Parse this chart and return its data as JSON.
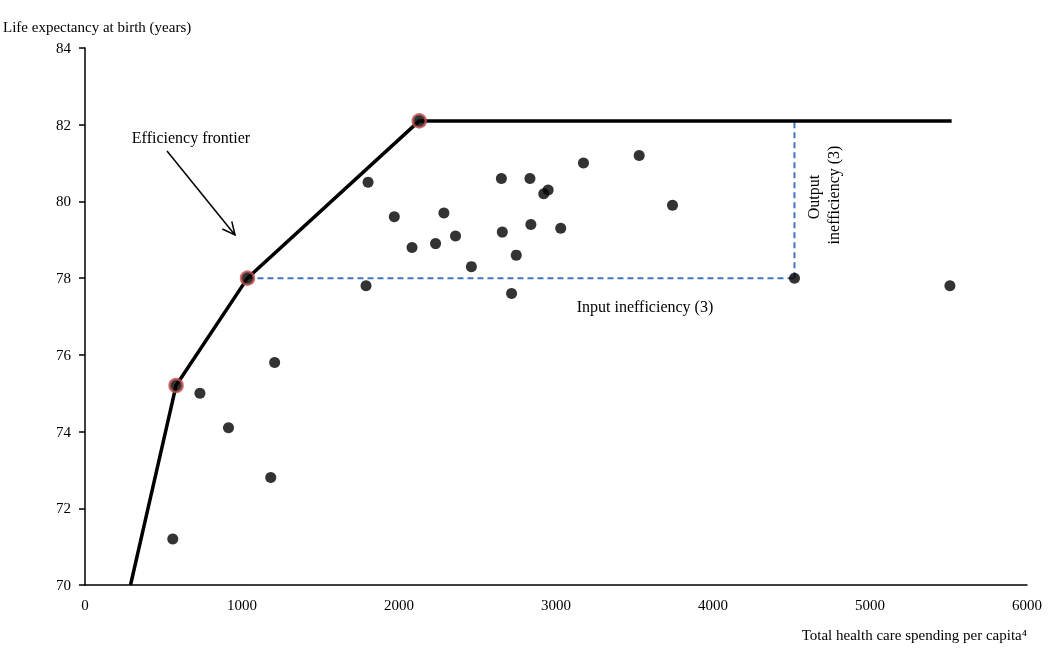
{
  "chart_data": {
    "type": "scatter",
    "xlabel": "Total health care spending per capita⁴",
    "ylabel": "Life expectancy at birth (years)",
    "xlim": [
      0,
      6000
    ],
    "xticks": [
      0,
      1000,
      2000,
      3000,
      4000,
      5000,
      6000
    ],
    "ylim": [
      70,
      84
    ],
    "yticks": [
      70,
      72,
      74,
      76,
      78,
      80,
      82,
      84
    ],
    "grid": false,
    "marker": "circle",
    "series": [
      {
        "type": "line",
        "marker": "none",
        "color": "#000000",
        "line_style": "solid",
        "x": [
          290,
          580,
          1035,
          2129,
          5520
        ],
        "values": [
          70,
          75.2,
          78,
          82.1,
          82.1
        ]
      },
      {
        "type": "line",
        "marker": "none",
        "color": "#4472c4",
        "line_style": "dashed",
        "x": [
          1035,
          4519
        ],
        "values": [
          78,
          78
        ]
      },
      {
        "type": "line",
        "marker": "none",
        "color": "#4472c4",
        "line_style": "dashed",
        "x": [
          4519,
          4519
        ],
        "values": [
          78,
          82.1
        ]
      },
      {
        "color": "#c0504d",
        "x": [
          580,
          1035,
          2129
        ],
        "values": [
          75.2,
          78,
          82.1
        ]
      },
      {
        "color": "#000000",
        "x": [
          559,
          732,
          914,
          1183,
          1208,
          1790,
          1803,
          1970,
          2083,
          2233,
          2286,
          2360,
          2461,
          2652,
          2658,
          2717,
          2747,
          2834,
          2840,
          2922,
          2950,
          3030,
          3175,
          3530,
          3742,
          4519,
          5509
        ],
        "values": [
          71.2,
          75.0,
          74.1,
          72.8,
          75.8,
          77.8,
          80.5,
          79.6,
          78.8,
          78.9,
          79.7,
          79.1,
          78.3,
          80.6,
          79.2,
          77.6,
          78.6,
          80.6,
          79.4,
          80.2,
          80.3,
          79.3,
          81.0,
          81.2,
          79.9,
          78.0,
          77.8
        ]
      }
    ],
    "annotations": [
      "Efficiency frontier",
      "Input inefficiency (3)",
      "Output inefficiency (3)"
    ]
  }
}
